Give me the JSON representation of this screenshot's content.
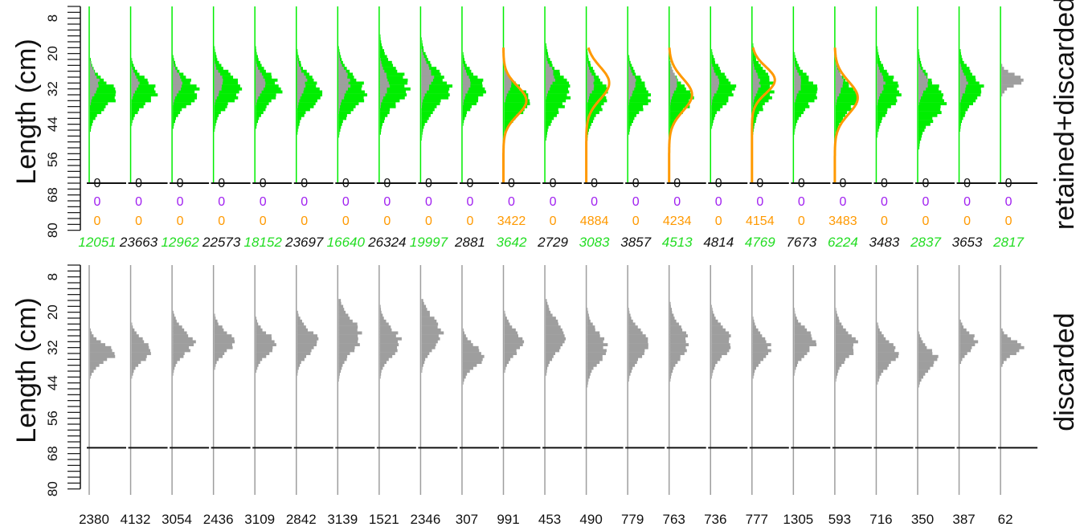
{
  "chart_data": [
    {
      "type": "bar",
      "orientation": "horizontal-histograms",
      "panel": "top",
      "ylabel": "Length (cm)",
      "right_label": "retained+discarded",
      "y_ticks": [
        "8",
        "20",
        "32",
        "44",
        "56",
        "68",
        "80"
      ],
      "ylim": [
        4,
        82
      ],
      "baseline_length": 64,
      "colors": {
        "retained": "#00ee00",
        "discarded": "#9e9e9e",
        "fit": "#ff9900",
        "purple": "#a020f0",
        "orange_text": "#ff9900",
        "green_text": "#22dd22",
        "black_text": "#111111"
      },
      "columns": [
        {
          "row1": "0",
          "row2": "0",
          "row3": "0",
          "total": "12051",
          "total_color": "green",
          "mode": 34,
          "sd": 4.5,
          "scale": 0.7,
          "grey_mode": 30,
          "grey_sd": 3.0,
          "grey_scale": 0.25,
          "fit": false
        },
        {
          "row1": "0",
          "row2": "0",
          "row3": "0",
          "total": "23663",
          "total_color": "black",
          "mode": 33,
          "sd": 4.0,
          "scale": 0.7,
          "grey_mode": 30,
          "grey_sd": 2.5,
          "grey_scale": 0.2,
          "fit": false
        },
        {
          "row1": "0",
          "row2": "0",
          "row3": "0",
          "total": "12962",
          "total_color": "green",
          "mode": 33,
          "sd": 4.5,
          "scale": 0.65,
          "grey_mode": 30,
          "grey_sd": 3.0,
          "grey_scale": 0.25,
          "fit": false
        },
        {
          "row1": "0",
          "row2": "0",
          "row3": "0",
          "total": "22573",
          "total_color": "black",
          "mode": 32,
          "sd": 5.0,
          "scale": 0.7,
          "grey_mode": 30,
          "grey_sd": 3.0,
          "grey_scale": 0.25,
          "fit": false
        },
        {
          "row1": "0",
          "row2": "0",
          "row3": "0",
          "total": "18152",
          "total_color": "green",
          "mode": 32,
          "sd": 5.0,
          "scale": 0.65,
          "grey_mode": 30,
          "grey_sd": 3.0,
          "grey_scale": 0.25,
          "fit": false
        },
        {
          "row1": "0",
          "row2": "0",
          "row3": "0",
          "total": "23697",
          "total_color": "black",
          "mode": 33,
          "sd": 5.0,
          "scale": 0.65,
          "grey_mode": 30,
          "grey_sd": 3.5,
          "grey_scale": 0.25,
          "fit": false
        },
        {
          "row1": "0",
          "row2": "0",
          "row3": "0",
          "total": "16640",
          "total_color": "green",
          "mode": 33,
          "sd": 5.5,
          "scale": 0.7,
          "grey_mode": 30,
          "grey_sd": 4.0,
          "grey_scale": 0.3,
          "fit": false
        },
        {
          "row1": "0",
          "row2": "0",
          "row3": "0",
          "total": "26324",
          "total_color": "black",
          "mode": 31,
          "sd": 6.0,
          "scale": 0.75,
          "grey_mode": 30,
          "grey_sd": 3.5,
          "grey_scale": 0.25,
          "fit": false
        },
        {
          "row1": "0",
          "row2": "0",
          "row3": "0",
          "total": "19997",
          "total_color": "green",
          "mode": 32,
          "sd": 6.0,
          "scale": 0.75,
          "grey_mode": 28,
          "grey_sd": 4.0,
          "grey_scale": 0.3,
          "fit": false
        },
        {
          "row1": "0",
          "row2": "0",
          "row3": "0",
          "total": "2881",
          "total_color": "black",
          "mode": 32,
          "sd": 4.5,
          "scale": 0.6,
          "grey_mode": 30,
          "grey_sd": 3.0,
          "grey_scale": 0.2,
          "fit": false
        },
        {
          "row1": "0",
          "row2": "0",
          "row3": "3422",
          "total": "3642",
          "total_color": "green",
          "mode": 36,
          "sd": 4.5,
          "scale": 0.7,
          "grey_mode": 30,
          "grey_sd": 3.0,
          "grey_scale": 0.2,
          "fit": true,
          "fit_mode": 36,
          "fit_sd": 5.0
        },
        {
          "row1": "0",
          "row2": "0",
          "row3": "0",
          "total": "2729",
          "total_color": "black",
          "mode": 33,
          "sd": 6.0,
          "scale": 0.65,
          "grey_mode": 28,
          "grey_sd": 3.0,
          "grey_scale": 0.25,
          "fit": false
        },
        {
          "row1": "0",
          "row2": "0",
          "row3": "4884",
          "total": "3083",
          "total_color": "green",
          "mode": 34,
          "sd": 5.5,
          "scale": 0.55,
          "grey_mode": 30,
          "grey_sd": 3.0,
          "grey_scale": 0.2,
          "fit": true,
          "fit_mode": 30,
          "fit_sd": 5.5
        },
        {
          "row1": "0",
          "row2": "0",
          "row3": "0",
          "total": "3857",
          "total_color": "black",
          "mode": 34,
          "sd": 5.0,
          "scale": 0.6,
          "grey_mode": 30,
          "grey_sd": 3.0,
          "grey_scale": 0.2,
          "fit": false
        },
        {
          "row1": "0",
          "row2": "0",
          "row3": "4234",
          "total": "4513",
          "total_color": "green",
          "mode": 35,
          "sd": 4.5,
          "scale": 0.6,
          "grey_mode": 30,
          "grey_sd": 3.0,
          "grey_scale": 0.2,
          "fit": true,
          "fit_mode": 34,
          "fit_sd": 5.5
        },
        {
          "row1": "0",
          "row2": "0",
          "row3": "0",
          "total": "4814",
          "total_color": "black",
          "mode": 32,
          "sd": 5.0,
          "scale": 0.6,
          "grey_mode": 30,
          "grey_sd": 3.0,
          "grey_scale": 0.2,
          "fit": false
        },
        {
          "row1": "0",
          "row2": "0",
          "row3": "4154",
          "total": "4769",
          "total_color": "green",
          "mode": 32,
          "sd": 5.5,
          "scale": 0.55,
          "grey_mode": 30,
          "grey_sd": 3.0,
          "grey_scale": 0.2,
          "fit": true,
          "fit_mode": 29,
          "fit_sd": 4.5
        },
        {
          "row1": "0",
          "row2": "0",
          "row3": "0",
          "total": "7673",
          "total_color": "black",
          "mode": 33,
          "sd": 5.0,
          "scale": 0.6,
          "grey_mode": 30,
          "grey_sd": 3.0,
          "grey_scale": 0.2,
          "fit": false
        },
        {
          "row1": "0",
          "row2": "0",
          "row3": "3483",
          "total": "6224",
          "total_color": "green",
          "mode": 35,
          "sd": 5.0,
          "scale": 0.55,
          "grey_mode": 30,
          "grey_sd": 3.0,
          "grey_scale": 0.2,
          "fit": true,
          "fit_mode": 35,
          "fit_sd": 5.5
        },
        {
          "row1": "0",
          "row2": "0",
          "row3": "0",
          "total": "3483",
          "total_color": "black",
          "mode": 33,
          "sd": 5.5,
          "scale": 0.6,
          "grey_mode": 30,
          "grey_sd": 3.0,
          "grey_scale": 0.2,
          "fit": false
        },
        {
          "row1": "0",
          "row2": "0",
          "row3": "0",
          "total": "2837",
          "total_color": "green",
          "mode": 36,
          "sd": 6.0,
          "scale": 0.7,
          "grey_mode": 30,
          "grey_sd": 3.0,
          "grey_scale": 0.25,
          "fit": false
        },
        {
          "row1": "0",
          "row2": "0",
          "row3": "0",
          "total": "3653",
          "total_color": "black",
          "mode": 32,
          "sd": 5.0,
          "scale": 0.6,
          "grey_mode": 30,
          "grey_sd": 3.0,
          "grey_scale": 0.2,
          "fit": false
        },
        {
          "row1": "0",
          "row2": "0",
          "row3": "0",
          "total": "2817",
          "total_color": "green",
          "mode": 28,
          "sd": 2.5,
          "scale": 0.0,
          "grey_mode": 29,
          "grey_sd": 2.0,
          "grey_scale": 0.55,
          "fit": false
        }
      ]
    },
    {
      "type": "bar",
      "orientation": "horizontal-histograms",
      "panel": "bottom",
      "ylabel": "Length (cm)",
      "right_label": "discarded",
      "y_ticks": [
        "8",
        "20",
        "32",
        "44",
        "56",
        "68",
        "80"
      ],
      "ylim": [
        4,
        82
      ],
      "baseline_length": 66,
      "columns": [
        {
          "n": "2380",
          "mode": 34,
          "sd": 3.0,
          "scale": 0.65
        },
        {
          "n": "4132",
          "mode": 33,
          "sd": 3.5,
          "scale": 0.55
        },
        {
          "n": "3054",
          "mode": 30,
          "sd": 4.0,
          "scale": 0.55
        },
        {
          "n": "2436",
          "mode": 30,
          "sd": 3.5,
          "scale": 0.55
        },
        {
          "n": "3109",
          "mode": 31,
          "sd": 3.5,
          "scale": 0.55
        },
        {
          "n": "2842",
          "mode": 30,
          "sd": 4.0,
          "scale": 0.55
        },
        {
          "n": "3139",
          "mode": 28,
          "sd": 5.5,
          "scale": 0.6
        },
        {
          "n": "1521",
          "mode": 30,
          "sd": 4.5,
          "scale": 0.55
        },
        {
          "n": "2346",
          "mode": 27,
          "sd": 5.0,
          "scale": 0.55
        },
        {
          "n": "307",
          "mode": 35,
          "sd": 3.5,
          "scale": 0.55
        },
        {
          "n": "991",
          "mode": 30,
          "sd": 4.0,
          "scale": 0.5
        },
        {
          "n": "453",
          "mode": 28,
          "sd": 5.0,
          "scale": 0.55
        },
        {
          "n": "490",
          "mode": 32,
          "sd": 5.0,
          "scale": 0.5
        },
        {
          "n": "779",
          "mode": 31,
          "sd": 4.5,
          "scale": 0.55
        },
        {
          "n": "763",
          "mode": 30,
          "sd": 5.0,
          "scale": 0.5
        },
        {
          "n": "736",
          "mode": 30,
          "sd": 4.5,
          "scale": 0.55
        },
        {
          "n": "777",
          "mode": 32,
          "sd": 4.0,
          "scale": 0.45
        },
        {
          "n": "1305",
          "mode": 30,
          "sd": 4.0,
          "scale": 0.55
        },
        {
          "n": "593",
          "mode": 31,
          "sd": 4.5,
          "scale": 0.55
        },
        {
          "n": "716",
          "mode": 34,
          "sd": 4.0,
          "scale": 0.55
        },
        {
          "n": "350",
          "mode": 36,
          "sd": 3.5,
          "scale": 0.5
        },
        {
          "n": "387",
          "mode": 30,
          "sd": 3.0,
          "scale": 0.45
        },
        {
          "n": "62",
          "mode": 32,
          "sd": 2.5,
          "scale": 0.55
        }
      ]
    }
  ]
}
